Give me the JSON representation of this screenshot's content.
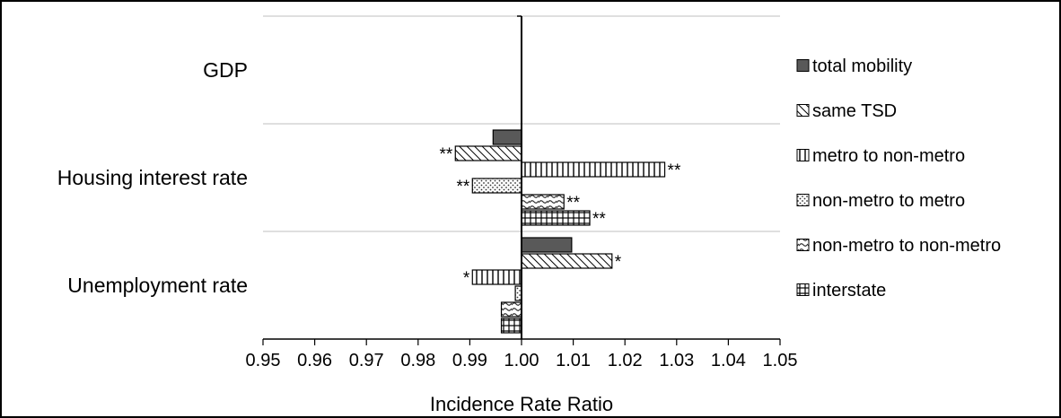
{
  "chart_data": {
    "type": "bar",
    "orientation": "horizontal",
    "title": "",
    "xlabel": "Incidence Rate Ratio",
    "ylabel": "",
    "xlim": [
      0.95,
      1.05
    ],
    "reference_value": 1.0,
    "x_ticks": [
      "0.95",
      "0.96",
      "0.97",
      "0.98",
      "0.99",
      "1.00",
      "1.01",
      "1.02",
      "1.03",
      "1.04",
      "1.05"
    ],
    "categories": [
      "GDP",
      "Housing interest rate",
      "Unemployment rate"
    ],
    "legend_position": "right",
    "grid": "horizontal category separators",
    "series": [
      {
        "name": "total mobility",
        "pattern": "solid-dark",
        "values": [
          1.0,
          0.9945,
          1.0097
        ],
        "significance": [
          "",
          "",
          ""
        ]
      },
      {
        "name": "same TSD",
        "pattern": "diagonal-hatch",
        "values": [
          1.0,
          0.9872,
          1.0175
        ],
        "significance": [
          "",
          "**",
          "*"
        ]
      },
      {
        "name": "metro to non-metro",
        "pattern": "vertical-lines",
        "values": [
          1.0,
          1.0277,
          0.9905
        ],
        "significance": [
          "",
          "**",
          "*"
        ]
      },
      {
        "name": "non-metro to metro",
        "pattern": "dots",
        "values": [
          1.0,
          0.9905,
          0.9988
        ],
        "significance": [
          "",
          "**",
          ""
        ]
      },
      {
        "name": "non-metro to non-metro",
        "pattern": "wave",
        "values": [
          1.0,
          1.0082,
          0.9961
        ],
        "significance": [
          "",
          "**",
          ""
        ]
      },
      {
        "name": "interstate",
        "pattern": "grid",
        "values": [
          1.0,
          1.0132,
          0.9961
        ],
        "significance": [
          "",
          "**",
          ""
        ]
      }
    ],
    "colors": {
      "dark_fill": "#595959",
      "line": "#000000",
      "gridline": "#bfbfbf",
      "background": "#ffffff"
    }
  }
}
